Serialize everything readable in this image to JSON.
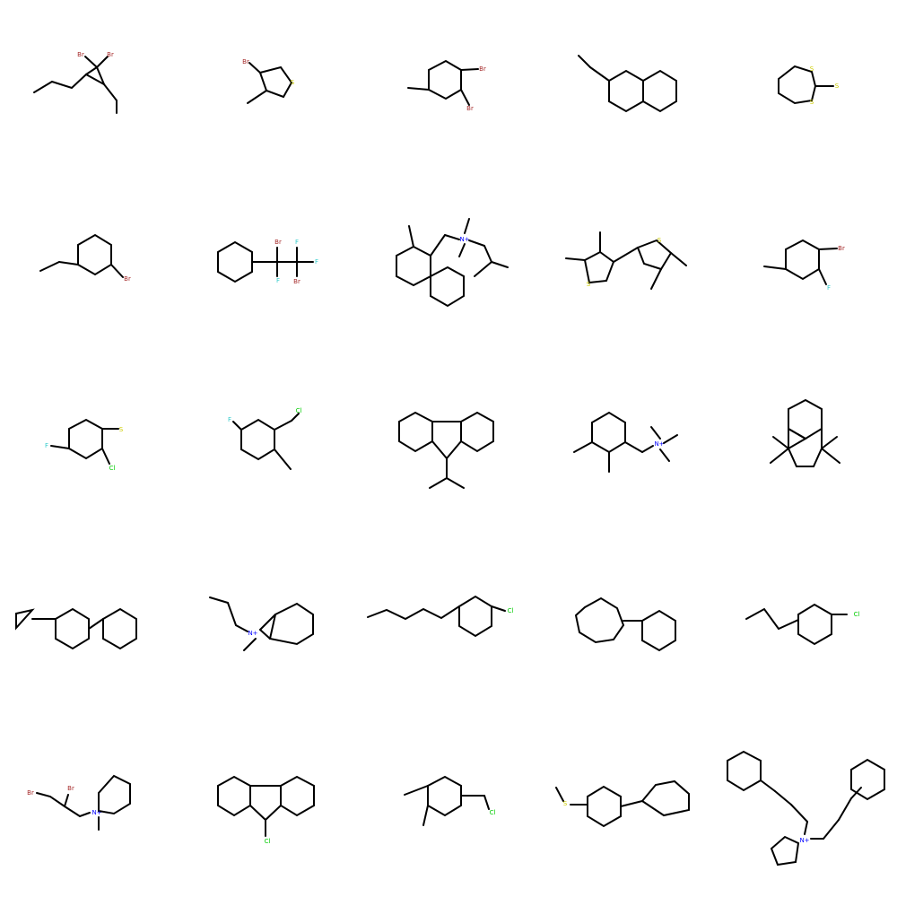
{
  "colors": {
    "bond": "#000000",
    "Br": "#a52a2a",
    "S": "#cccc00",
    "F": "#33cccc",
    "Cl": "#00cc00",
    "N": "#0000ff",
    "background": "#ffffff"
  },
  "molecules": [
    {
      "id": "m01",
      "atoms": [
        "Br",
        "Br"
      ]
    },
    {
      "id": "m02",
      "atoms": [
        "Br",
        "S"
      ]
    },
    {
      "id": "m03",
      "atoms": [
        "Br",
        "Br"
      ]
    },
    {
      "id": "m04",
      "atoms": []
    },
    {
      "id": "m05",
      "atoms": [
        "S",
        "S",
        "S"
      ]
    },
    {
      "id": "m06",
      "atoms": [
        "Br"
      ]
    },
    {
      "id": "m07",
      "atoms": [
        "Br",
        "F",
        "F",
        "F",
        "Br"
      ]
    },
    {
      "id": "m08",
      "atoms": [
        "N+"
      ]
    },
    {
      "id": "m09",
      "atoms": [
        "S",
        "S"
      ]
    },
    {
      "id": "m10",
      "atoms": [
        "Br",
        "F"
      ]
    },
    {
      "id": "m11",
      "atoms": [
        "F",
        "S",
        "Cl"
      ]
    },
    {
      "id": "m12",
      "atoms": [
        "F",
        "Cl"
      ]
    },
    {
      "id": "m13",
      "atoms": []
    },
    {
      "id": "m14",
      "atoms": [
        "N+"
      ]
    },
    {
      "id": "m15",
      "atoms": []
    },
    {
      "id": "m16",
      "atoms": []
    },
    {
      "id": "m17",
      "atoms": [
        "N+"
      ]
    },
    {
      "id": "m18",
      "atoms": [
        "Cl"
      ]
    },
    {
      "id": "m19",
      "atoms": []
    },
    {
      "id": "m20",
      "atoms": [
        "Cl"
      ]
    },
    {
      "id": "m21",
      "atoms": [
        "Br",
        "Br",
        "N+"
      ]
    },
    {
      "id": "m22",
      "atoms": [
        "Cl"
      ]
    },
    {
      "id": "m23",
      "atoms": [
        "Cl"
      ]
    },
    {
      "id": "m24",
      "atoms": [
        "S"
      ]
    },
    {
      "id": "m25",
      "atoms": [
        "N+"
      ]
    }
  ]
}
